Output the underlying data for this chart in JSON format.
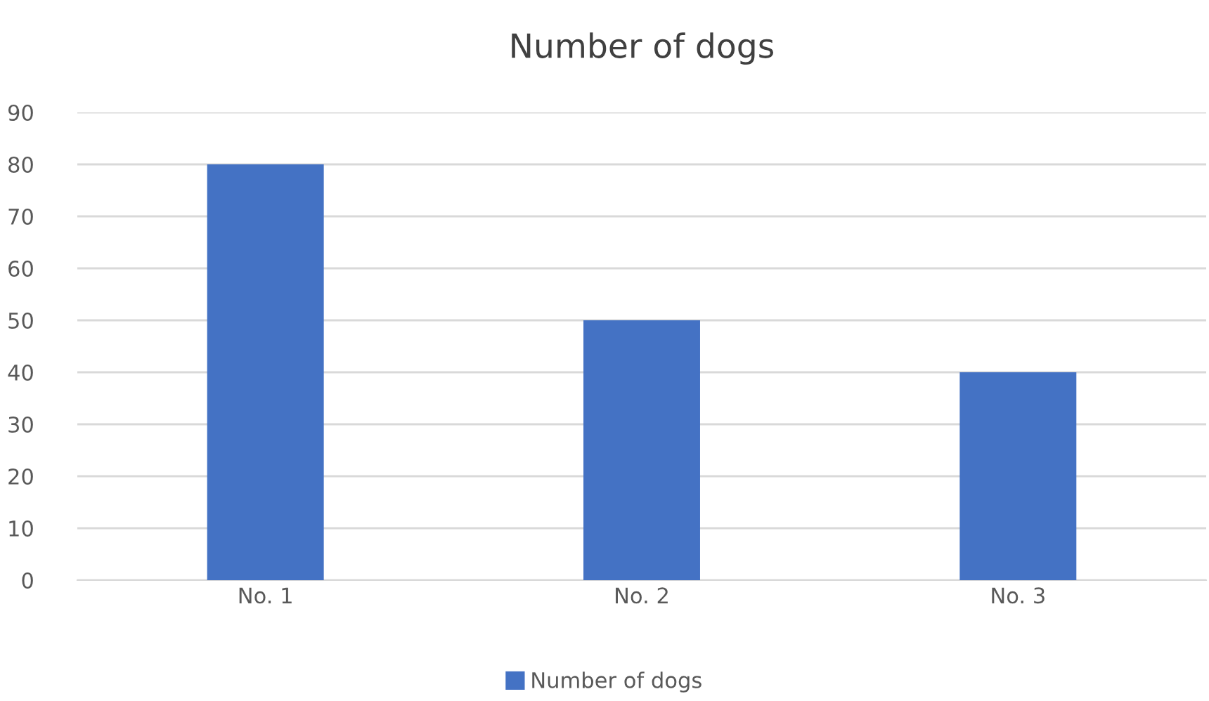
{
  "chart_data": {
    "type": "bar",
    "title": "Number of dogs",
    "categories": [
      "No. 1",
      "No. 2",
      "No. 3"
    ],
    "series": [
      {
        "name": "Number of dogs",
        "color": "#4472c4",
        "values": [
          80,
          50,
          40
        ]
      }
    ],
    "ylim": [
      0,
      90
    ],
    "yticks": [
      0,
      10,
      20,
      30,
      40,
      50,
      60,
      70,
      80,
      90
    ],
    "grid": "y",
    "legend": "bottom"
  }
}
